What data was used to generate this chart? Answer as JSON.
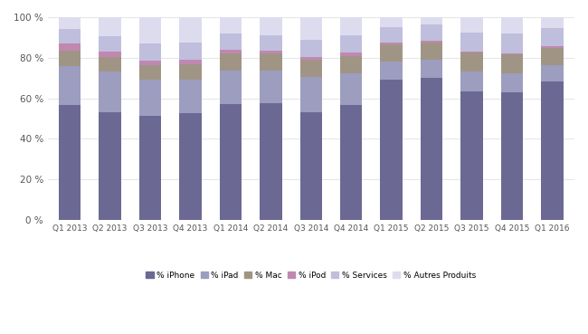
{
  "quarters": [
    "Q1 2013",
    "Q2 2013",
    "Q3 2013",
    "Q4 2013",
    "Q1 2014",
    "Q2 2014",
    "Q3 2014",
    "Q4 2014",
    "Q1 2015",
    "Q2 2015",
    "Q3 2015",
    "Q4 2015",
    "Q1 2016"
  ],
  "iphone": [
    56.5,
    53.0,
    51.5,
    52.5,
    57.0,
    57.5,
    53.0,
    56.5,
    69.0,
    70.0,
    63.5,
    63.0,
    68.5
  ],
  "ipad": [
    19.5,
    20.0,
    17.5,
    16.5,
    16.5,
    16.0,
    17.5,
    16.0,
    9.0,
    9.0,
    9.5,
    9.5,
    8.0
  ],
  "mac": [
    7.5,
    7.5,
    7.5,
    8.0,
    8.5,
    8.5,
    8.5,
    8.5,
    8.5,
    8.5,
    9.5,
    9.0,
    8.5
  ],
  "ipod": [
    3.5,
    2.5,
    2.0,
    2.0,
    2.0,
    1.5,
    1.5,
    1.5,
    1.0,
    1.0,
    0.5,
    0.5,
    0.5
  ],
  "services": [
    7.0,
    7.5,
    8.5,
    8.5,
    8.0,
    7.5,
    8.5,
    8.5,
    7.5,
    8.0,
    9.5,
    10.0,
    9.0
  ],
  "autres": [
    6.0,
    9.5,
    13.0,
    12.5,
    8.0,
    9.0,
    11.0,
    9.0,
    5.0,
    3.5,
    7.5,
    8.0,
    5.5
  ],
  "colors": {
    "iphone": "#6b6994",
    "ipad": "#9d9dc0",
    "mac": "#a09585",
    "ipod": "#c088b0",
    "services": "#c0bedd",
    "autres": "#dddcef"
  },
  "labels": {
    "iphone": "% iPhone",
    "ipad": "% iPad",
    "mac": "% Mac",
    "ipod": "% iPod",
    "services": "% Services",
    "autres": "% Autres Produits"
  },
  "yticks": [
    0,
    20,
    40,
    60,
    80,
    100
  ],
  "ytick_labels": [
    "0 %",
    "20 %",
    "40 %",
    "60 %",
    "80 %",
    "100 %"
  ]
}
